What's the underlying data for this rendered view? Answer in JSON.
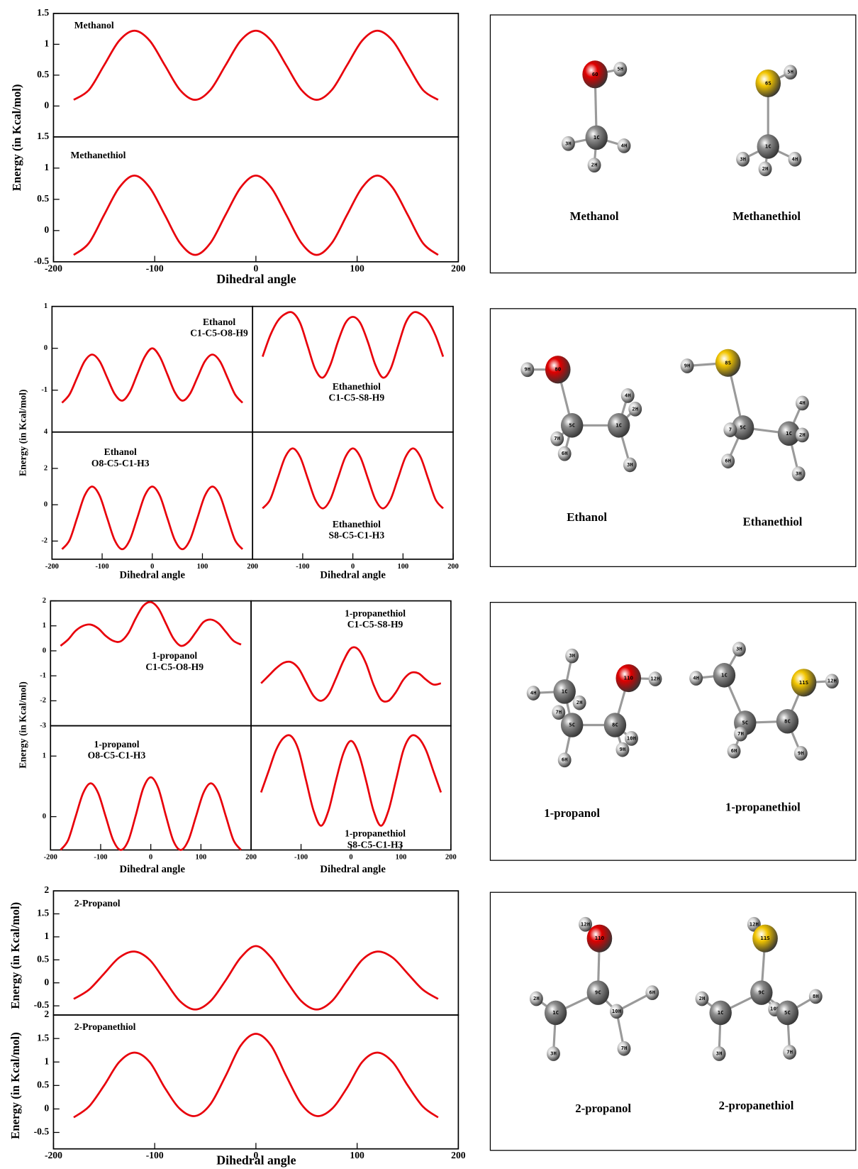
{
  "chart_data": [
    {
      "type": "line",
      "title": "Methanol",
      "y_label": "Energy (in Kcal/mol)",
      "color": "#e8000b",
      "xlim": [
        -200,
        200
      ],
      "ylim": [
        -0.5,
        1.5
      ],
      "yticks": [
        0,
        0.5,
        1,
        1.5
      ],
      "x": [
        -180,
        -165,
        -150,
        -135,
        -120,
        -105,
        -90,
        -75,
        -60,
        -45,
        -30,
        -15,
        0,
        15,
        30,
        45,
        60,
        75,
        90,
        105,
        120,
        135,
        150,
        165,
        180
      ],
      "values": [
        0.1,
        0.26,
        0.66,
        1.06,
        1.22,
        1.06,
        0.66,
        0.26,
        0.1,
        0.26,
        0.66,
        1.06,
        1.22,
        1.06,
        0.66,
        0.26,
        0.1,
        0.26,
        0.66,
        1.06,
        1.22,
        1.06,
        0.66,
        0.26,
        0.1
      ]
    },
    {
      "type": "line",
      "title": "Methanethiol",
      "x_label": "Dihedral angle",
      "color": "#e8000b",
      "xlim": [
        -200,
        200
      ],
      "ylim": [
        -0.5,
        1.5
      ],
      "yticks": [
        -0.5,
        0,
        0.5,
        1,
        1.5
      ],
      "xticks": [
        -200,
        -100,
        0,
        100,
        200
      ],
      "x": [
        -180,
        -165,
        -150,
        -135,
        -120,
        -105,
        -90,
        -75,
        -60,
        -45,
        -30,
        -15,
        0,
        15,
        30,
        45,
        60,
        75,
        90,
        105,
        120,
        135,
        150,
        165,
        180
      ],
      "values": [
        -0.39,
        -0.2,
        0.25,
        0.69,
        0.88,
        0.69,
        0.25,
        -0.2,
        -0.39,
        -0.2,
        0.25,
        0.69,
        0.88,
        0.69,
        0.25,
        -0.2,
        -0.39,
        -0.2,
        0.25,
        0.69,
        0.88,
        0.69,
        0.25,
        -0.2,
        -0.39
      ]
    },
    {
      "type": "line",
      "title": "Ethanol",
      "subtitle": "C1-C5-O8-H9",
      "y_label": "Energy (in Kcal/mol)",
      "color": "#e8000b",
      "xlim": [
        -200,
        200
      ],
      "ylim": [
        -2,
        1
      ],
      "yticks": [
        -1,
        0,
        1
      ],
      "x": [
        -180,
        -165,
        -150,
        -135,
        -120,
        -105,
        -90,
        -75,
        -60,
        -45,
        -30,
        -15,
        0,
        15,
        30,
        45,
        60,
        75,
        90,
        105,
        120,
        135,
        150,
        165,
        180
      ],
      "values": [
        -1.3,
        -1.1,
        -0.7,
        -0.31,
        -0.15,
        -0.31,
        -0.7,
        -1.09,
        -1.25,
        -1.05,
        -0.62,
        -0.2,
        0,
        -0.2,
        -0.62,
        -1.05,
        -1.25,
        -1.09,
        -0.7,
        -0.31,
        -0.15,
        -0.31,
        -0.7,
        -1.1,
        -1.3
      ]
    },
    {
      "type": "line",
      "title": "Ethanethiol",
      "subtitle": "C1-C5-S8-H9",
      "color": "#e8000b",
      "xlim": [
        -200,
        200
      ],
      "ylim": [
        -2,
        1
      ],
      "x": [
        -180,
        -165,
        -150,
        -135,
        -120,
        -105,
        -90,
        -75,
        -60,
        -45,
        -30,
        -15,
        0,
        15,
        30,
        45,
        60,
        75,
        90,
        105,
        120,
        135,
        150,
        165,
        180
      ],
      "values": [
        -0.2,
        0.3,
        0.65,
        0.82,
        0.85,
        0.6,
        0.05,
        -0.5,
        -0.7,
        -0.4,
        0.15,
        0.6,
        0.75,
        0.6,
        0.15,
        -0.4,
        -0.7,
        -0.5,
        0.05,
        0.6,
        0.85,
        0.82,
        0.65,
        0.3,
        -0.2
      ]
    },
    {
      "type": "line",
      "title": "Ethanol",
      "subtitle": "O8-C5-C1-H3",
      "x_label": "Dihedral angle",
      "color": "#e8000b",
      "xlim": [
        -200,
        200
      ],
      "ylim": [
        -3,
        4
      ],
      "yticks": [
        -2,
        0,
        2,
        4
      ],
      "xticks": [
        -200,
        -100,
        0,
        100,
        200
      ],
      "x": [
        -180,
        -165,
        -150,
        -135,
        -120,
        -105,
        -90,
        -75,
        -60,
        -45,
        -30,
        -15,
        0,
        15,
        30,
        45,
        60,
        75,
        90,
        105,
        120,
        135,
        150,
        165,
        180
      ],
      "values": [
        -2.45,
        -1.95,
        -0.73,
        0.5,
        1,
        0.5,
        -0.73,
        -1.95,
        -2.45,
        -1.95,
        -0.73,
        0.5,
        1,
        0.5,
        -0.73,
        -1.95,
        -2.45,
        -1.95,
        -0.73,
        0.5,
        1,
        0.5,
        -0.73,
        -1.95,
        -2.45
      ]
    },
    {
      "type": "line",
      "title": "Ethanethiol",
      "subtitle": "S8-C5-C1-H3",
      "x_label": "Dihedral angle",
      "color": "#e8000b",
      "xlim": [
        -200,
        200
      ],
      "ylim": [
        -3,
        4
      ],
      "xticks": [
        -100,
        0,
        100,
        200
      ],
      "x": [
        -180,
        -165,
        -150,
        -135,
        -120,
        -105,
        -90,
        -75,
        -60,
        -45,
        -30,
        -15,
        0,
        15,
        30,
        45,
        60,
        75,
        90,
        105,
        120,
        135,
        150,
        165,
        180
      ],
      "values": [
        -0.2,
        0.28,
        1.45,
        2.62,
        3.1,
        2.62,
        1.45,
        0.28,
        -0.2,
        0.28,
        1.45,
        2.62,
        3.1,
        2.62,
        1.45,
        0.28,
        -0.2,
        0.28,
        1.45,
        2.62,
        3.1,
        2.62,
        1.45,
        0.28,
        -0.2
      ]
    },
    {
      "type": "line",
      "title": "1-propanol",
      "subtitle": "C1-C5-O8-H9",
      "y_label": "Energy (in Kcal/mol)",
      "color": "#e8000b",
      "xlim": [
        -200,
        200
      ],
      "ylim": [
        -3,
        2
      ],
      "yticks": [
        -3,
        -2,
        -1,
        0,
        1,
        2
      ],
      "x": [
        -180,
        -165,
        -150,
        -135,
        -120,
        -105,
        -90,
        -75,
        -60,
        -45,
        -30,
        -15,
        0,
        15,
        30,
        45,
        60,
        75,
        90,
        105,
        120,
        135,
        150,
        165,
        180
      ],
      "values": [
        0.2,
        0.45,
        0.8,
        1.0,
        1.05,
        0.9,
        0.6,
        0.4,
        0.38,
        0.7,
        1.3,
        1.8,
        1.95,
        1.7,
        1.1,
        0.5,
        0.2,
        0.35,
        0.75,
        1.15,
        1.25,
        1.1,
        0.75,
        0.4,
        0.25
      ]
    },
    {
      "type": "line",
      "title": "1-propanethiol",
      "subtitle": "C1-C5-S8-H9",
      "color": "#e8000b",
      "xlim": [
        -200,
        200
      ],
      "ylim": [
        -3,
        2
      ],
      "x": [
        -180,
        -165,
        -150,
        -135,
        -120,
        -105,
        -90,
        -75,
        -60,
        -45,
        -30,
        -15,
        0,
        15,
        30,
        45,
        60,
        75,
        90,
        105,
        120,
        135,
        150,
        165,
        180
      ],
      "values": [
        -1.3,
        -1.0,
        -0.7,
        -0.48,
        -0.45,
        -0.7,
        -1.25,
        -1.8,
        -2.0,
        -1.75,
        -1.1,
        -0.4,
        0.1,
        0.05,
        -0.5,
        -1.35,
        -1.95,
        -2.0,
        -1.65,
        -1.15,
        -0.88,
        -0.9,
        -1.15,
        -1.35,
        -1.3
      ]
    },
    {
      "type": "line",
      "title": "1-propanol",
      "subtitle": "O8-C5-C1-H3",
      "x_label": "Dihedral angle",
      "color": "#e8000b",
      "xlim": [
        -200,
        200
      ],
      "ylim": [
        -0.55,
        1.5
      ],
      "yticks": [
        0,
        1
      ],
      "xticks": [
        -200,
        -100,
        0,
        100,
        200
      ],
      "x": [
        -180,
        -165,
        -150,
        -135,
        -120,
        -105,
        -90,
        -75,
        -60,
        -45,
        -30,
        -15,
        0,
        15,
        30,
        45,
        60,
        75,
        90,
        105,
        120,
        135,
        150,
        165,
        180
      ],
      "values": [
        -0.55,
        -0.39,
        0,
        0.39,
        0.55,
        0.39,
        0,
        -0.39,
        -0.55,
        -0.4,
        0.02,
        0.47,
        0.65,
        0.47,
        0.02,
        -0.4,
        -0.55,
        -0.39,
        0,
        0.39,
        0.55,
        0.39,
        0,
        -0.39,
        -0.55
      ]
    },
    {
      "type": "line",
      "title": "1-propanethiol",
      "subtitle": "S8-C5-C1-H3",
      "x_label": "Dihedral angle",
      "color": "#e8000b",
      "xlim": [
        -200,
        200
      ],
      "ylim": [
        -0.55,
        1.5
      ],
      "xticks": [
        -100,
        0,
        100,
        200
      ],
      "x": [
        -180,
        -165,
        -150,
        -135,
        -120,
        -105,
        -90,
        -75,
        -60,
        -45,
        -30,
        -15,
        0,
        15,
        30,
        45,
        60,
        75,
        90,
        105,
        120,
        135,
        150,
        165,
        180
      ],
      "values": [
        0.4,
        0.75,
        1.1,
        1.3,
        1.33,
        1.1,
        0.6,
        0.1,
        -0.15,
        0.1,
        0.6,
        1.05,
        1.25,
        1.05,
        0.6,
        0.1,
        -0.15,
        0.1,
        0.6,
        1.1,
        1.33,
        1.3,
        1.1,
        0.75,
        0.4
      ]
    },
    {
      "type": "line",
      "title": "2-Propanol",
      "y_label": "Energy (in Kcal/mol)",
      "color": "#e8000b",
      "xlim": [
        -200,
        200
      ],
      "ylim": [
        -0.7,
        2
      ],
      "yticks": [
        -0.5,
        0,
        0.5,
        1,
        1.5,
        2
      ],
      "x": [
        -180,
        -165,
        -150,
        -135,
        -120,
        -105,
        -90,
        -75,
        -60,
        -45,
        -30,
        -15,
        0,
        15,
        30,
        45,
        60,
        75,
        90,
        105,
        120,
        135,
        150,
        165,
        180
      ],
      "values": [
        -0.35,
        -0.15,
        0.2,
        0.55,
        0.68,
        0.5,
        0.05,
        -0.4,
        -0.58,
        -0.4,
        0.05,
        0.55,
        0.8,
        0.55,
        0.05,
        -0.4,
        -0.58,
        -0.4,
        0.05,
        0.5,
        0.68,
        0.55,
        0.2,
        -0.15,
        -0.35
      ]
    },
    {
      "type": "line",
      "title": "2-Propanethiol",
      "y_label": "Energy (in Kcal/mol)",
      "x_label": "Dihedral angle",
      "color": "#e8000b",
      "xlim": [
        -200,
        200
      ],
      "ylim": [
        -0.85,
        2
      ],
      "yticks": [
        -0.5,
        0,
        0.5,
        1,
        1.5,
        2
      ],
      "xticks": [
        -200,
        -100,
        0,
        100,
        200
      ],
      "x": [
        -180,
        -165,
        -150,
        -135,
        -120,
        -105,
        -90,
        -75,
        -60,
        -45,
        -30,
        -15,
        0,
        15,
        30,
        45,
        60,
        75,
        90,
        105,
        120,
        135,
        150,
        165,
        180
      ],
      "values": [
        -0.18,
        0.05,
        0.5,
        1.0,
        1.2,
        1.0,
        0.45,
        0.0,
        -0.15,
        0.1,
        0.7,
        1.35,
        1.6,
        1.35,
        0.7,
        0.1,
        -0.15,
        0.0,
        0.45,
        1.0,
        1.2,
        1.0,
        0.5,
        0.05,
        -0.18
      ]
    }
  ],
  "atom_colors": {
    "O": "#e00000",
    "S": "#f2c500",
    "C": "#8c8c8c",
    "H": "#d6d6d6"
  },
  "molecules": [
    {
      "name": "Methanol",
      "atoms": [
        "6O",
        "5H",
        "1C",
        "3H",
        "4H",
        "2H"
      ]
    },
    {
      "name": "Methanethiol",
      "atoms": [
        "6S",
        "5H",
        "1C",
        "3H",
        "2H",
        "4H"
      ]
    },
    {
      "name": "Ethanol",
      "atoms": [
        "9H",
        "8O",
        "5C",
        "1C",
        "4H",
        "2H",
        "7H",
        "6H",
        "3H"
      ]
    },
    {
      "name": "Ethanethiol",
      "atoms": [
        "9H",
        "8S",
        "5C",
        "1C",
        "4H",
        "2H",
        "7",
        "6H",
        "3H"
      ]
    },
    {
      "name": "1-propanol",
      "atoms": [
        "3H",
        "1C",
        "4H",
        "2H",
        "7H",
        "5C",
        "8C",
        "11O",
        "12H",
        "10H",
        "9H",
        "6H"
      ]
    },
    {
      "name": "1-propanethiol",
      "atoms": [
        "3H",
        "1C",
        "4H",
        "11S",
        "12H",
        "5C",
        "7H",
        "8C",
        "6H",
        "9H"
      ]
    },
    {
      "name": "2-propanol",
      "atoms": [
        "12H",
        "11O",
        "9C",
        "2H",
        "1C",
        "10H",
        "6H",
        "7H",
        "3H"
      ]
    },
    {
      "name": "2-propanethiol",
      "atoms": [
        "12H",
        "11S",
        "9C",
        "2H",
        "1C",
        "10H",
        "5C",
        "8H",
        "7H",
        "3H"
      ]
    }
  ]
}
